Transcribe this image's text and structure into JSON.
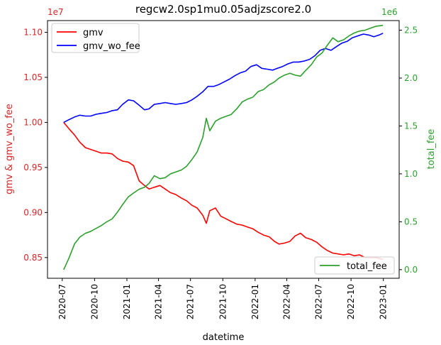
{
  "chart_data": {
    "type": "line",
    "title": "regcw2.0sp1mu0.05adjzscore2.0",
    "xlabel": "datetime",
    "ylabel_left": "gmv & gmv_wo_fee",
    "ylabel_right": "total_fee",
    "left_axis": {
      "offset_label": "1e7",
      "ylim": [
        8.27,
        11.13
      ],
      "ticks": [
        8.5,
        9.0,
        9.5,
        10.0,
        10.5,
        11.0
      ],
      "tick_labels": [
        "0.85",
        "0.90",
        "0.95",
        "1.00",
        "1.05",
        "1.10"
      ]
    },
    "right_axis": {
      "offset_label": "1e6",
      "ylim": [
        -0.09,
        2.6
      ],
      "ticks": [
        0.0,
        0.5,
        1.0,
        1.5,
        2.0,
        2.5
      ],
      "tick_labels": [
        "0.0",
        "0.5",
        "1.0",
        "1.5",
        "2.0",
        "2.5"
      ]
    },
    "x_axis": {
      "xlim": [
        "2020-05-20",
        "2023-02-15"
      ],
      "tick_dates": [
        "2020-07-01",
        "2020-10-01",
        "2021-01-01",
        "2021-04-01",
        "2021-07-01",
        "2021-10-01",
        "2022-01-01",
        "2022-04-01",
        "2022-07-01",
        "2022-10-01",
        "2023-01-01"
      ],
      "tick_labels": [
        "2020-07",
        "2020-10",
        "2021-01",
        "2021-04",
        "2021-07",
        "2021-10",
        "2022-01",
        "2022-04",
        "2022-07",
        "2022-10",
        "2023-01"
      ]
    },
    "legend_left": {
      "placement": "upper-left",
      "entries": [
        "gmv",
        "gmv_wo_fee"
      ]
    },
    "legend_right": {
      "placement": "lower-right",
      "entries": [
        "total_fee"
      ]
    },
    "series": [
      {
        "name": "gmv",
        "axis": "left",
        "color": "#ff0000",
        "points": [
          [
            "2020-07-05",
            10.0
          ],
          [
            "2020-07-20",
            9.93
          ],
          [
            "2020-08-05",
            9.86
          ],
          [
            "2020-08-20",
            9.78
          ],
          [
            "2020-09-05",
            9.72
          ],
          [
            "2020-09-20",
            9.7
          ],
          [
            "2020-10-05",
            9.68
          ],
          [
            "2020-10-20",
            9.66
          ],
          [
            "2020-11-05",
            9.66
          ],
          [
            "2020-11-20",
            9.65
          ],
          [
            "2020-12-05",
            9.6
          ],
          [
            "2020-12-20",
            9.57
          ],
          [
            "2021-01-05",
            9.56
          ],
          [
            "2021-01-20",
            9.52
          ],
          [
            "2021-02-05",
            9.35
          ],
          [
            "2021-02-20",
            9.3
          ],
          [
            "2021-03-05",
            9.26
          ],
          [
            "2021-03-20",
            9.28
          ],
          [
            "2021-04-05",
            9.3
          ],
          [
            "2021-04-20",
            9.26
          ],
          [
            "2021-05-05",
            9.22
          ],
          [
            "2021-05-20",
            9.2
          ],
          [
            "2021-06-05",
            9.16
          ],
          [
            "2021-06-20",
            9.13
          ],
          [
            "2021-07-05",
            9.08
          ],
          [
            "2021-07-20",
            9.05
          ],
          [
            "2021-08-05",
            8.97
          ],
          [
            "2021-08-15",
            8.88
          ],
          [
            "2021-08-25",
            9.02
          ],
          [
            "2021-09-10",
            9.05
          ],
          [
            "2021-09-25",
            8.96
          ],
          [
            "2021-10-10",
            8.93
          ],
          [
            "2021-10-25",
            8.9
          ],
          [
            "2021-11-10",
            8.87
          ],
          [
            "2021-11-25",
            8.86
          ],
          [
            "2021-12-10",
            8.84
          ],
          [
            "2021-12-25",
            8.82
          ],
          [
            "2022-01-10",
            8.78
          ],
          [
            "2022-01-25",
            8.75
          ],
          [
            "2022-02-10",
            8.73
          ],
          [
            "2022-02-25",
            8.68
          ],
          [
            "2022-03-10",
            8.65
          ],
          [
            "2022-03-25",
            8.66
          ],
          [
            "2022-04-10",
            8.68
          ],
          [
            "2022-04-25",
            8.74
          ],
          [
            "2022-05-10",
            8.77
          ],
          [
            "2022-05-25",
            8.72
          ],
          [
            "2022-06-10",
            8.7
          ],
          [
            "2022-06-25",
            8.67
          ],
          [
            "2022-07-10",
            8.62
          ],
          [
            "2022-07-25",
            8.58
          ],
          [
            "2022-08-10",
            8.55
          ],
          [
            "2022-08-25",
            8.54
          ],
          [
            "2022-09-10",
            8.53
          ],
          [
            "2022-09-25",
            8.54
          ],
          [
            "2022-10-10",
            8.52
          ],
          [
            "2022-10-25",
            8.53
          ],
          [
            "2022-11-10",
            8.5
          ],
          [
            "2022-11-25",
            8.5
          ],
          [
            "2022-12-10",
            8.5
          ],
          [
            "2022-12-31",
            8.48
          ]
        ]
      },
      {
        "name": "gmv_wo_fee",
        "axis": "left",
        "color": "#0000ff",
        "points": [
          [
            "2020-07-05",
            10.0
          ],
          [
            "2020-07-20",
            10.03
          ],
          [
            "2020-08-05",
            10.06
          ],
          [
            "2020-08-20",
            10.08
          ],
          [
            "2020-09-05",
            10.07
          ],
          [
            "2020-09-20",
            10.07
          ],
          [
            "2020-10-05",
            10.09
          ],
          [
            "2020-10-20",
            10.1
          ],
          [
            "2020-11-05",
            10.11
          ],
          [
            "2020-11-20",
            10.13
          ],
          [
            "2020-12-05",
            10.14
          ],
          [
            "2020-12-20",
            10.2
          ],
          [
            "2021-01-05",
            10.25
          ],
          [
            "2021-01-20",
            10.24
          ],
          [
            "2021-02-05",
            10.19
          ],
          [
            "2021-02-20",
            10.14
          ],
          [
            "2021-03-05",
            10.15
          ],
          [
            "2021-03-20",
            10.2
          ],
          [
            "2021-04-05",
            10.21
          ],
          [
            "2021-04-20",
            10.22
          ],
          [
            "2021-05-05",
            10.21
          ],
          [
            "2021-05-20",
            10.2
          ],
          [
            "2021-06-05",
            10.21
          ],
          [
            "2021-06-20",
            10.22
          ],
          [
            "2021-07-05",
            10.25
          ],
          [
            "2021-07-20",
            10.29
          ],
          [
            "2021-08-05",
            10.34
          ],
          [
            "2021-08-20",
            10.4
          ],
          [
            "2021-09-05",
            10.4
          ],
          [
            "2021-09-20",
            10.42
          ],
          [
            "2021-10-05",
            10.45
          ],
          [
            "2021-10-20",
            10.48
          ],
          [
            "2021-11-05",
            10.52
          ],
          [
            "2021-11-20",
            10.55
          ],
          [
            "2021-12-05",
            10.57
          ],
          [
            "2021-12-20",
            10.62
          ],
          [
            "2022-01-05",
            10.64
          ],
          [
            "2022-01-20",
            10.6
          ],
          [
            "2022-02-05",
            10.59
          ],
          [
            "2022-02-20",
            10.58
          ],
          [
            "2022-03-05",
            10.6
          ],
          [
            "2022-03-20",
            10.62
          ],
          [
            "2022-04-05",
            10.65
          ],
          [
            "2022-04-20",
            10.67
          ],
          [
            "2022-05-05",
            10.67
          ],
          [
            "2022-05-20",
            10.68
          ],
          [
            "2022-06-05",
            10.7
          ],
          [
            "2022-06-20",
            10.74
          ],
          [
            "2022-07-05",
            10.8
          ],
          [
            "2022-07-20",
            10.82
          ],
          [
            "2022-08-05",
            10.8
          ],
          [
            "2022-08-20",
            10.84
          ],
          [
            "2022-09-05",
            10.88
          ],
          [
            "2022-09-20",
            10.9
          ],
          [
            "2022-10-05",
            10.94
          ],
          [
            "2022-10-20",
            10.96
          ],
          [
            "2022-11-05",
            10.98
          ],
          [
            "2022-11-20",
            10.97
          ],
          [
            "2022-12-05",
            10.95
          ],
          [
            "2022-12-20",
            10.97
          ],
          [
            "2022-12-31",
            10.99
          ]
        ]
      },
      {
        "name": "total_fee",
        "axis": "right",
        "color": "#2ca02c",
        "points": [
          [
            "2020-07-05",
            0.0
          ],
          [
            "2020-07-20",
            0.12
          ],
          [
            "2020-08-05",
            0.27
          ],
          [
            "2020-08-20",
            0.34
          ],
          [
            "2020-09-05",
            0.38
          ],
          [
            "2020-09-20",
            0.4
          ],
          [
            "2020-10-05",
            0.43
          ],
          [
            "2020-10-20",
            0.46
          ],
          [
            "2020-11-05",
            0.5
          ],
          [
            "2020-11-20",
            0.53
          ],
          [
            "2020-12-05",
            0.6
          ],
          [
            "2020-12-20",
            0.68
          ],
          [
            "2021-01-05",
            0.76
          ],
          [
            "2021-01-20",
            0.8
          ],
          [
            "2021-02-05",
            0.84
          ],
          [
            "2021-02-20",
            0.86
          ],
          [
            "2021-03-05",
            0.9
          ],
          [
            "2021-03-20",
            0.98
          ],
          [
            "2021-04-05",
            0.95
          ],
          [
            "2021-04-20",
            0.96
          ],
          [
            "2021-05-05",
            1.0
          ],
          [
            "2021-05-20",
            1.02
          ],
          [
            "2021-06-05",
            1.04
          ],
          [
            "2021-06-20",
            1.08
          ],
          [
            "2021-07-05",
            1.15
          ],
          [
            "2021-07-20",
            1.23
          ],
          [
            "2021-08-05",
            1.38
          ],
          [
            "2021-08-15",
            1.58
          ],
          [
            "2021-08-25",
            1.45
          ],
          [
            "2021-09-10",
            1.55
          ],
          [
            "2021-09-25",
            1.58
          ],
          [
            "2021-10-10",
            1.6
          ],
          [
            "2021-10-25",
            1.62
          ],
          [
            "2021-11-10",
            1.68
          ],
          [
            "2021-11-25",
            1.75
          ],
          [
            "2021-12-10",
            1.78
          ],
          [
            "2021-12-25",
            1.8
          ],
          [
            "2022-01-10",
            1.86
          ],
          [
            "2022-01-25",
            1.88
          ],
          [
            "2022-02-10",
            1.93
          ],
          [
            "2022-02-25",
            1.96
          ],
          [
            "2022-03-10",
            2.0
          ],
          [
            "2022-03-25",
            2.03
          ],
          [
            "2022-04-10",
            2.05
          ],
          [
            "2022-04-25",
            2.03
          ],
          [
            "2022-05-10",
            2.02
          ],
          [
            "2022-05-25",
            2.08
          ],
          [
            "2022-06-10",
            2.14
          ],
          [
            "2022-06-25",
            2.22
          ],
          [
            "2022-07-10",
            2.26
          ],
          [
            "2022-07-25",
            2.34
          ],
          [
            "2022-08-10",
            2.42
          ],
          [
            "2022-08-25",
            2.38
          ],
          [
            "2022-09-10",
            2.4
          ],
          [
            "2022-09-25",
            2.44
          ],
          [
            "2022-10-10",
            2.47
          ],
          [
            "2022-10-25",
            2.49
          ],
          [
            "2022-11-10",
            2.5
          ],
          [
            "2022-11-25",
            2.52
          ],
          [
            "2022-12-10",
            2.54
          ],
          [
            "2022-12-31",
            2.55
          ]
        ]
      }
    ]
  }
}
